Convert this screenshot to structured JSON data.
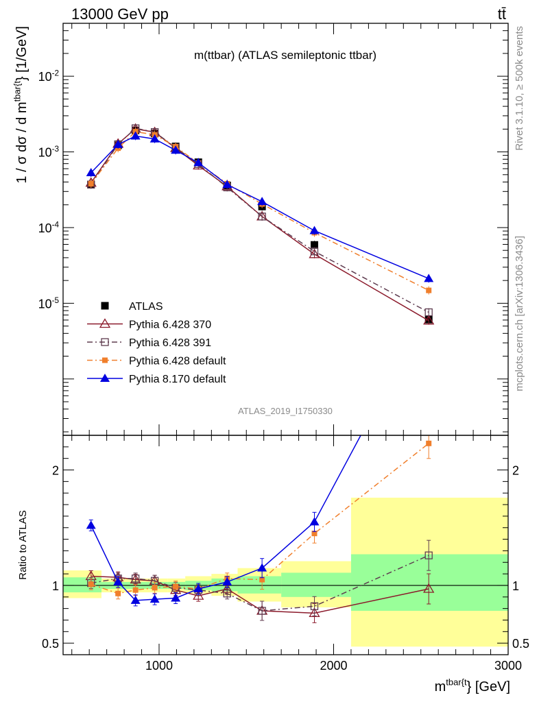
{
  "header": {
    "left": "13000 GeV pp",
    "right": "tt̄"
  },
  "side_labels": {
    "top": "Rivet 3.1.10, ≥ 500k events",
    "bottom": "mcplots.cern.ch [arXiv:1306.3436]"
  },
  "chart_data": [
    {
      "type": "line",
      "title": "m(ttbar) (ATLAS semileptonic ttbar)",
      "ylabel": "1 / σ dσ / d m^{tbar{t}} [1/GeV]",
      "yscale": "log",
      "xlim": [
        450,
        3000
      ],
      "ylim": [
        1.8e-07,
        0.05
      ],
      "yticks": [
        {
          "value": 0.01,
          "label": "10^{-2}"
        },
        {
          "value": 0.001,
          "label": "10^{-3}"
        },
        {
          "value": 0.0001,
          "label": "10^{-4}"
        },
        {
          "value": 1e-05,
          "label": "10^{-5}"
        }
      ],
      "watermark": "ATLAS_2019_I1750330",
      "legend_position": "lower-left",
      "x": [
        610,
        765,
        865,
        975,
        1095,
        1225,
        1390,
        1590,
        1890,
        2545
      ],
      "series": [
        {
          "name": "ATLAS",
          "style": "data",
          "color": "#000000",
          "marker": "square-filled",
          "values": [
            0.00037,
            0.00122,
            0.00192,
            0.00175,
            0.00118,
            0.00073,
            0.00036,
            0.00019,
            5.9e-05,
            6.1e-06
          ]
        },
        {
          "name": "Pythia 6.428 370",
          "style": "solid",
          "color": "#8b1a2b",
          "marker": "triangle-open",
          "values": [
            0.00039,
            0.00128,
            0.00202,
            0.00182,
            0.00112,
            0.00066,
            0.00035,
            0.00014,
            4.45e-05,
            5.9e-06
          ]
        },
        {
          "name": "Pythia 6.428 391",
          "style": "dashdot",
          "color": "#5e3b4f",
          "marker": "square-open",
          "values": [
            0.00037,
            0.00126,
            0.00205,
            0.00183,
            0.00114,
            0.00069,
            0.00034,
            0.00014,
            4.85e-05,
            7.6e-06
          ]
        },
        {
          "name": "Pythia 6.428 default",
          "style": "dashdot",
          "color": "#f07f2c",
          "marker": "square-filled-small",
          "values": [
            0.00038,
            0.00112,
            0.00185,
            0.00168,
            0.00117,
            0.00071,
            0.00038,
            0.000205,
            8.55e-05,
            1.48e-05
          ]
        },
        {
          "name": "Pythia 8.170 default",
          "style": "solid",
          "color": "#0000e0",
          "marker": "triangle-filled",
          "values": [
            0.00053,
            0.00125,
            0.00162,
            0.00148,
            0.00105,
            0.00072,
            0.00037,
            0.00022,
            9.1e-05,
            2.12e-05
          ]
        }
      ]
    },
    {
      "type": "line",
      "ylabel": "Ratio to ATLAS",
      "xlabel": "m^{tbar{t}} [GeV]",
      "xlim": [
        450,
        3000
      ],
      "ylim": [
        0.4,
        2.3
      ],
      "xticks": [
        1000,
        2000,
        3000
      ],
      "yticks": [
        0.5,
        1,
        2
      ],
      "reference_line": 1,
      "bands": {
        "edges": [
          450,
          670,
          860,
          1050,
          1150,
          1300,
          1450,
          1700,
          2100,
          3000
        ],
        "bins": [
          {
            "lo": 450,
            "hi": 670,
            "green": [
              0.94,
              1.07
            ],
            "yellow": [
              0.89,
              1.13
            ]
          },
          {
            "lo": 670,
            "hi": 860,
            "green": [
              0.97,
              1.03
            ],
            "yellow": [
              0.94,
              1.06
            ]
          },
          {
            "lo": 860,
            "hi": 1050,
            "green": [
              0.97,
              1.03
            ],
            "yellow": [
              0.94,
              1.06
            ]
          },
          {
            "lo": 1050,
            "hi": 1150,
            "green": [
              0.97,
              1.03
            ],
            "yellow": [
              0.94,
              1.06
            ]
          },
          {
            "lo": 1150,
            "hi": 1300,
            "green": [
              0.96,
              1.04
            ],
            "yellow": [
              0.93,
              1.08
            ]
          },
          {
            "lo": 1300,
            "hi": 1450,
            "green": [
              0.95,
              1.06
            ],
            "yellow": [
              0.91,
              1.1
            ]
          },
          {
            "lo": 1450,
            "hi": 1700,
            "green": [
              0.93,
              1.08
            ],
            "yellow": [
              0.86,
              1.15
            ]
          },
          {
            "lo": 1700,
            "hi": 2100,
            "green": [
              0.9,
              1.11
            ],
            "yellow": [
              0.81,
              1.21
            ]
          },
          {
            "lo": 2100,
            "hi": 3000,
            "green": [
              0.78,
              1.27
            ],
            "yellow": [
              0.47,
              1.76
            ]
          }
        ]
      },
      "series": [
        {
          "name": "Pythia 6.428 370",
          "values": [
            1.08,
            1.07,
            1.05,
            1.04,
            0.96,
            0.91,
            0.97,
            0.78,
            0.76,
            0.97
          ]
        },
        {
          "name": "Pythia 6.428 391",
          "values": [
            1.02,
            1.06,
            1.06,
            1.04,
            0.98,
            0.96,
            0.93,
            0.78,
            0.82,
            1.26
          ]
        },
        {
          "name": "Pythia 6.428 default",
          "values": [
            1.01,
            0.93,
            0.96,
            0.98,
            0.99,
            0.97,
            1.06,
            1.05,
            1.45,
            2.23
          ]
        },
        {
          "name": "Pythia 8.170 default",
          "values": [
            1.52,
            1.03,
            0.87,
            0.88,
            0.89,
            0.97,
            1.03,
            1.15,
            1.55,
            3.4
          ]
        }
      ]
    }
  ]
}
